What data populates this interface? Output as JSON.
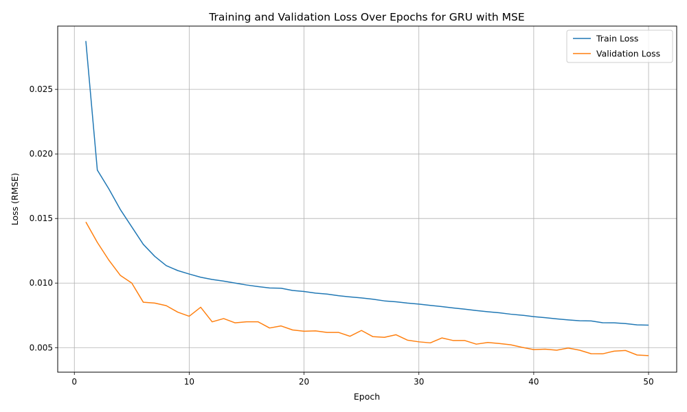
{
  "chart_data": {
    "type": "line",
    "title": "Training and Validation Loss Over Epochs for GRU with MSE",
    "xlabel": "Epoch",
    "ylabel": "Loss (RMSE)",
    "xlim": [
      -1.45,
      52.45
    ],
    "ylim": [
      0.0031,
      0.0299
    ],
    "xticks": [
      0,
      10,
      20,
      30,
      40,
      50
    ],
    "xtick_labels": [
      "0",
      "10",
      "20",
      "30",
      "40",
      "50"
    ],
    "yticks": [
      0.005,
      0.01,
      0.015,
      0.02,
      0.025
    ],
    "ytick_labels": [
      "0.005",
      "0.010",
      "0.015",
      "0.020",
      "0.025"
    ],
    "grid": true,
    "legend_position": "top-right",
    "x": [
      1,
      2,
      3,
      4,
      5,
      6,
      7,
      8,
      9,
      10,
      11,
      12,
      13,
      14,
      15,
      16,
      17,
      18,
      19,
      20,
      21,
      22,
      23,
      24,
      25,
      26,
      27,
      28,
      29,
      30,
      31,
      32,
      33,
      34,
      35,
      36,
      37,
      38,
      39,
      40,
      41,
      42,
      43,
      44,
      45,
      46,
      47,
      48,
      49,
      50
    ],
    "series": [
      {
        "name": "Train Loss",
        "color": "#1f77b4",
        "values": [
          0.02875,
          0.01875,
          0.0173,
          0.0157,
          0.01435,
          0.013,
          0.01207,
          0.01135,
          0.01097,
          0.0107,
          0.01045,
          0.01028,
          0.01015,
          0.01,
          0.00985,
          0.00973,
          0.00962,
          0.0096,
          0.00943,
          0.00935,
          0.00922,
          0.00915,
          0.00902,
          0.00893,
          0.00885,
          0.00875,
          0.00862,
          0.00855,
          0.00845,
          0.00837,
          0.00827,
          0.00818,
          0.00807,
          0.00798,
          0.00787,
          0.00778,
          0.0077,
          0.00759,
          0.00751,
          0.0074,
          0.00732,
          0.00723,
          0.00715,
          0.00708,
          0.00707,
          0.00693,
          0.00692,
          0.00686,
          0.00676,
          0.00674
        ]
      },
      {
        "name": "Validation Loss",
        "color": "#ff7f0e",
        "values": [
          0.01473,
          0.01315,
          0.01178,
          0.0106,
          0.01,
          0.00852,
          0.00845,
          0.00825,
          0.00775,
          0.00743,
          0.00813,
          0.007,
          0.00725,
          0.00692,
          0.007,
          0.007,
          0.00652,
          0.00668,
          0.00637,
          0.00627,
          0.0063,
          0.00618,
          0.00618,
          0.00588,
          0.00633,
          0.00585,
          0.0058,
          0.006,
          0.00558,
          0.00545,
          0.00537,
          0.00575,
          0.00555,
          0.00555,
          0.00527,
          0.0054,
          0.00532,
          0.00522,
          0.00502,
          0.00485,
          0.00488,
          0.0048,
          0.00497,
          0.0048,
          0.00453,
          0.00452,
          0.00473,
          0.00478,
          0.00443,
          0.00438
        ]
      }
    ]
  }
}
